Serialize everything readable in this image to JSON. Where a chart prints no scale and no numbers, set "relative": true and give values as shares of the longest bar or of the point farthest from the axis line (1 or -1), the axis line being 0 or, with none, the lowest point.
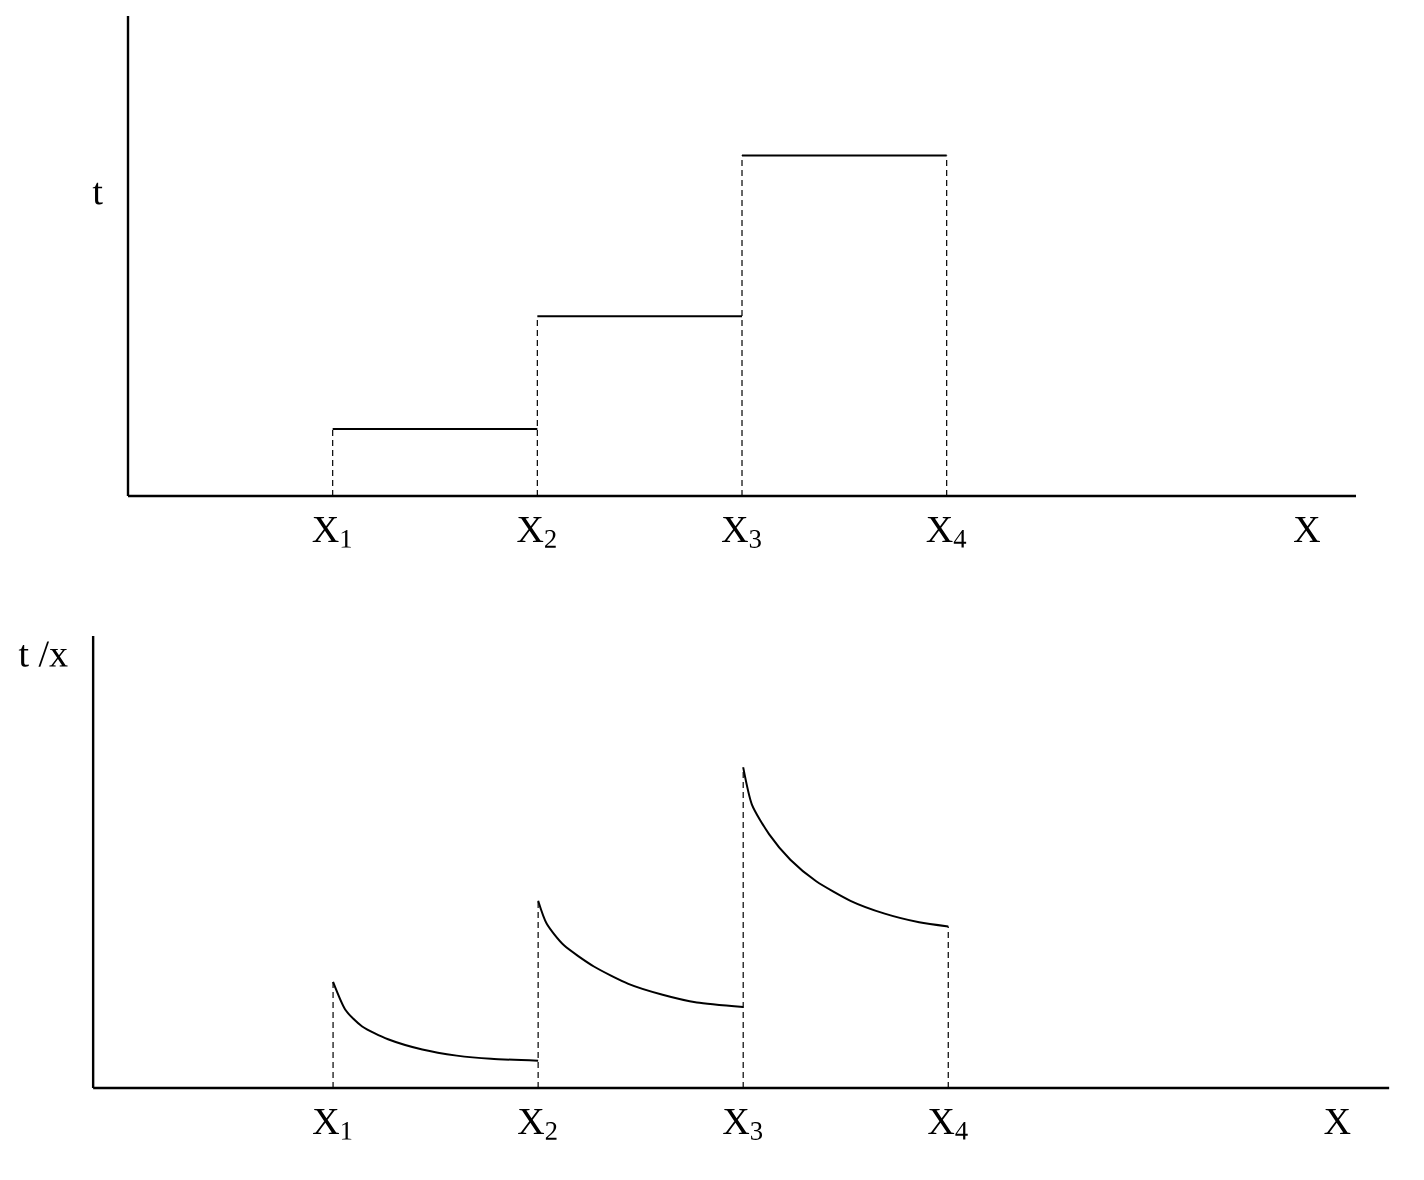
{
  "chart_data": [
    {
      "type": "step",
      "relative": true,
      "xlabel": "X",
      "ylabel": "t",
      "color": "#000000",
      "x": [
        1,
        2,
        3,
        4
      ],
      "values": [
        0.197,
        0.528,
        1,
        1
      ],
      "xlim": [
        0,
        6
      ],
      "ref_lines": [
        {
          "axis": "x",
          "value": 1,
          "line_style": "dashed"
        },
        {
          "axis": "x",
          "value": 2,
          "line_style": "dashed"
        },
        {
          "axis": "x",
          "value": 3,
          "line_style": "dashed"
        },
        {
          "axis": "x",
          "value": 4,
          "line_style": "dashed"
        }
      ],
      "xticks": [
        {
          "value": 1,
          "label": "X$_{1}$"
        },
        {
          "value": 2,
          "label": "X$_{2}$"
        },
        {
          "value": 3,
          "label": "X$_{3}$"
        },
        {
          "value": 4,
          "label": "X$_{4}$"
        }
      ]
    },
    {
      "type": "line",
      "relative": true,
      "xlabel": "X",
      "ylabel": "t /x",
      "xlim": [
        -0.17,
        6.15
      ],
      "ref_lines": [
        {
          "axis": "x",
          "value": 1,
          "line_style": "dashed"
        },
        {
          "axis": "x",
          "value": 2,
          "line_style": "dashed"
        },
        {
          "axis": "x",
          "value": 3,
          "line_style": "dashed"
        },
        {
          "axis": "x",
          "value": 4,
          "line_style": "dashed"
        }
      ],
      "xticks": [
        {
          "value": 1,
          "label": "X$_{1}$"
        },
        {
          "value": 2,
          "label": "X$_{2}$"
        },
        {
          "value": 3,
          "label": "X$_{3}$"
        },
        {
          "value": 4,
          "label": "X$_{4}$"
        }
      ],
      "series": [
        {
          "color": "#000000",
          "x": [
            1,
            1.059,
            1.142,
            1.268,
            1.435,
            1.603,
            1.77,
            2.0
          ],
          "values": [
            0.331,
            0.245,
            0.192,
            0.152,
            0.12,
            0.101,
            0.091,
            0.085
          ]
        },
        {
          "color": "#000000",
          "x": [
            2,
            2.042,
            2.126,
            2.272,
            2.44,
            2.607,
            2.774,
            3.0
          ],
          "values": [
            0.584,
            0.512,
            0.445,
            0.379,
            0.325,
            0.291,
            0.267,
            0.253
          ]
        },
        {
          "color": "#000000",
          "x": [
            3,
            3.042,
            3.126,
            3.23,
            3.356,
            3.523,
            3.69,
            3.858,
            4.0
          ],
          "values": [
            1,
            0.885,
            0.792,
            0.712,
            0.645,
            0.584,
            0.544,
            0.517,
            0.504
          ]
        }
      ]
    }
  ]
}
